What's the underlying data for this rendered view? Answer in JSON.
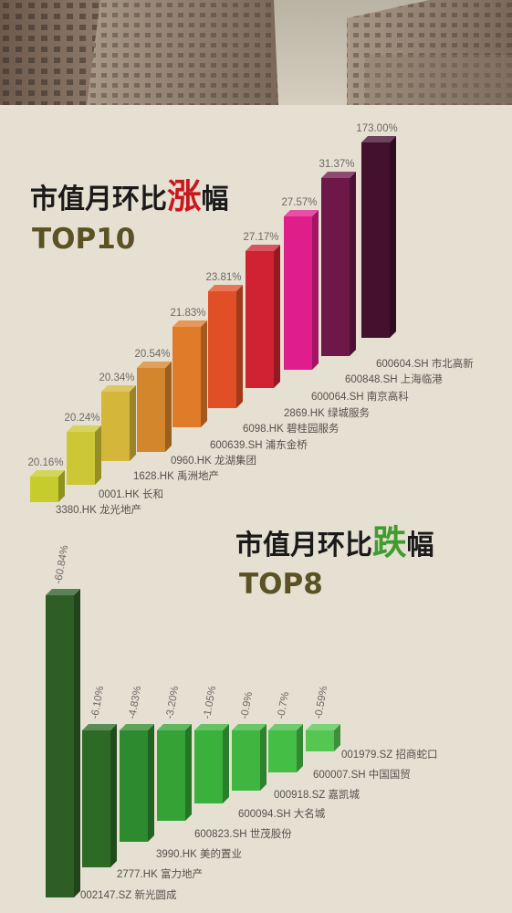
{
  "colors": {
    "background": "#e6e0d2",
    "rise_accent": "#c8171e",
    "fall_accent": "#3f9d2e",
    "top_label": "#5a5222"
  },
  "banner": {
    "icon": "skyscraper-photo"
  },
  "chart_data": [
    {
      "type": "bar",
      "title_prefix": "市值月环比",
      "title_accent": "涨",
      "title_suffix": "幅",
      "subtitle": "TOP10",
      "categories": [
        "3380.HK 龙光地产",
        "0001.HK 长和",
        "1628.HK 禹洲地产",
        "0960.HK 龙湖集团",
        "600639.SH 浦东金桥",
        "6098.HK 碧桂园服务",
        "2869.HK 绿城服务",
        "600064.SH 南京高科",
        "600848.SH 上海临港",
        "600604.SH 市北高新"
      ],
      "values": [
        20.16,
        20.24,
        20.34,
        20.54,
        21.83,
        23.81,
        27.17,
        27.57,
        31.37,
        173.0
      ],
      "value_labels": [
        "20.16%",
        "20.24%",
        "20.34%",
        "20.54%",
        "21.83%",
        "23.81%",
        "27.17%",
        "27.57%",
        "31.37%",
        "173.00%"
      ],
      "colors": [
        "#c5cc2c",
        "#ccc735",
        "#d4b73a",
        "#d4862d",
        "#e07b2a",
        "#e04f26",
        "#cf2233",
        "#e01e8b",
        "#6d1848",
        "#43102e"
      ]
    },
    {
      "type": "bar",
      "title_prefix": "市值月环比",
      "title_accent": "跌",
      "title_suffix": "幅",
      "subtitle": "TOP8",
      "categories": [
        "002147.SZ 新光圆成",
        "2777.HK 富力地产",
        "3990.HK 美的置业",
        "600823.SH 世茂股份",
        "600094.SH 大名城",
        "000918.SZ 嘉凯城",
        "600007.SH 中国国贸",
        "001979.SZ 招商蛇口"
      ],
      "values": [
        -60.84,
        -6.1,
        -4.83,
        -3.2,
        -1.05,
        -0.9,
        -0.7,
        -0.59
      ],
      "value_labels": [
        "-60.84%",
        "-6.10%",
        "-4.83%",
        "-3.20%",
        "-1.05%",
        "-0.9%",
        "-0.7%",
        "-0.59%"
      ],
      "colors": [
        "#2e5e26",
        "#2d6a26",
        "#2e8a2e",
        "#35a235",
        "#3ab13a",
        "#3fb63f",
        "#45be45",
        "#55c651"
      ]
    }
  ]
}
